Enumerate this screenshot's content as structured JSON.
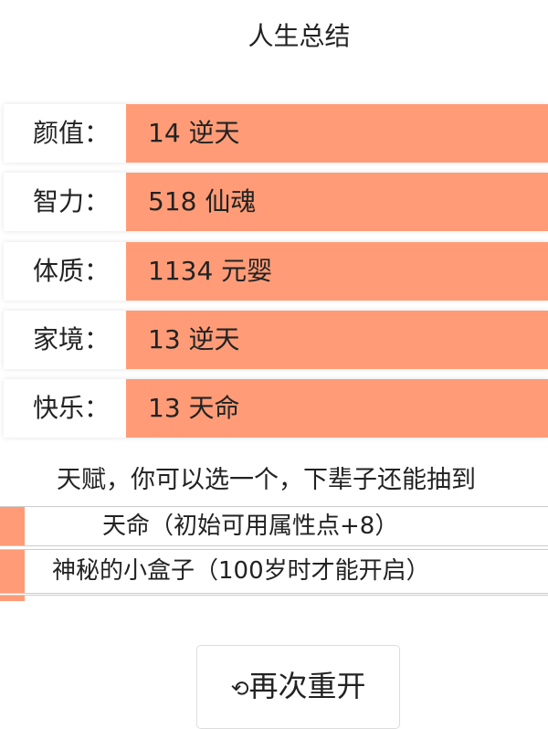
{
  "title": "人生总结",
  "stats": [
    {
      "label": "颜值：",
      "value": "14 逆天"
    },
    {
      "label": "智力：",
      "value": "518 仙魂"
    },
    {
      "label": "体质：",
      "value": "1134 元婴"
    },
    {
      "label": "家境：",
      "value": "13 逆天"
    },
    {
      "label": "快乐：",
      "value": "13 天命"
    }
  ],
  "talents": {
    "heading": "天赋，你可以选一个，下辈子还能抽到",
    "items": [
      "天命（初始可用属性点+8）",
      "神秘的小盒子（100岁时才能开启）"
    ]
  },
  "accent": "#ff9c77",
  "restart": {
    "icon": "refresh-icon",
    "label": "再次重开"
  }
}
